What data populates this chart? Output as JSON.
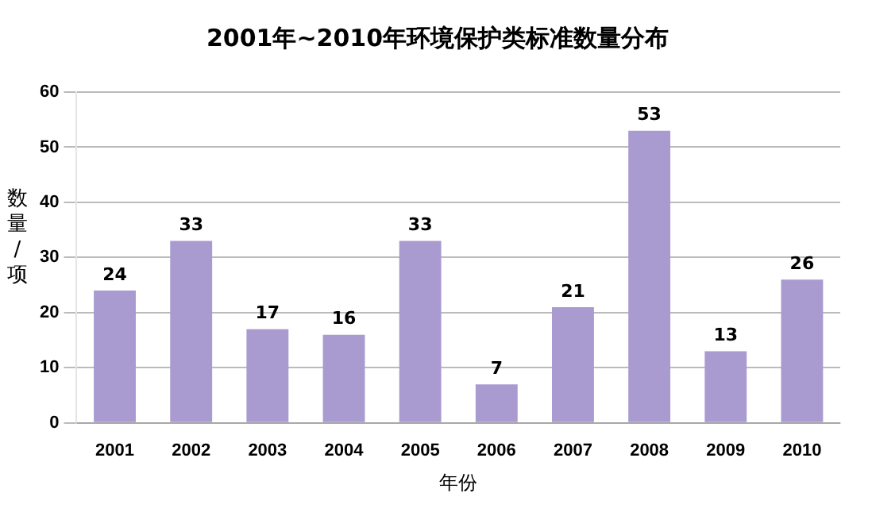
{
  "chart_data": {
    "type": "bar",
    "title": "2001年~2010年环境保护类标准数量分布",
    "xlabel": "年份",
    "ylabel": "数量/项",
    "categories": [
      "2001",
      "2002",
      "2003",
      "2004",
      "2005",
      "2006",
      "2007",
      "2008",
      "2009",
      "2010"
    ],
    "values": [
      24,
      33,
      17,
      16,
      33,
      7,
      21,
      53,
      13,
      26
    ],
    "color": "#a99bd0",
    "ylim": [
      0,
      60
    ],
    "yticks": [
      0,
      10,
      20,
      30,
      40,
      50,
      60
    ],
    "grid": "y",
    "data_labels": true,
    "legend": false
  }
}
